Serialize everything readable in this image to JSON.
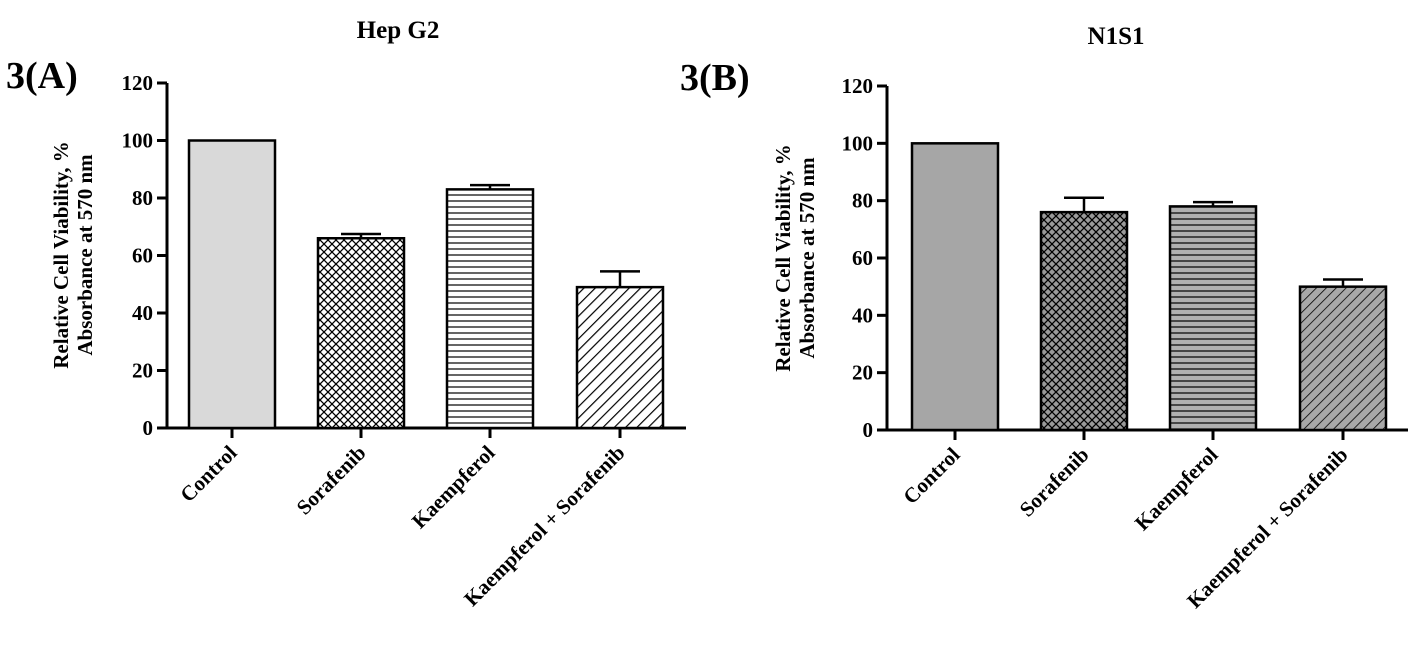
{
  "chart_data": [
    {
      "type": "bar",
      "panel_label": "3(A)",
      "title": "Hep G2",
      "xlabel": "",
      "ylabel_line1": "Relative Cell Viability, %",
      "ylabel_line2": "Absorbance at 570 nm",
      "ylim": [
        0,
        120
      ],
      "yticks": [
        0,
        20,
        40,
        60,
        80,
        100,
        120
      ],
      "categories": [
        "Control",
        "Sorafenib",
        "Kaempferol",
        "Kaempferol + Sorafenib"
      ],
      "values": [
        100,
        66,
        83,
        49
      ],
      "errors": [
        0,
        1.5,
        1.5,
        5.5
      ],
      "fills": [
        "#d9d9d9",
        "crosshatch",
        "horizontal",
        "diagonal"
      ]
    },
    {
      "type": "bar",
      "panel_label": "3(B)",
      "title": "N1S1",
      "xlabel": "",
      "ylabel_line1": "Relative Cell Viability, %",
      "ylabel_line2": "Absorbance at 570 nm",
      "ylim": [
        0,
        120
      ],
      "yticks": [
        0,
        20,
        40,
        60,
        80,
        100,
        120
      ],
      "categories": [
        "Control",
        "Sorafenib",
        "Kaempferol",
        "Kaempferol + Sorafenib"
      ],
      "values": [
        100,
        76,
        78,
        50
      ],
      "errors": [
        0,
        5,
        1.5,
        2.5
      ],
      "fills": [
        "#a6a6a6",
        "crosshatch",
        "horizontal",
        "diagonal"
      ]
    }
  ]
}
